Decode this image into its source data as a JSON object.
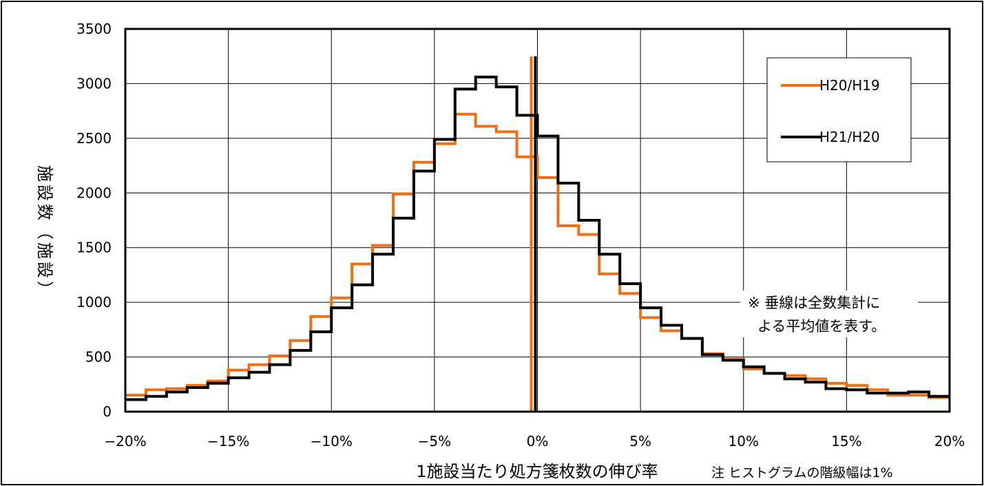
{
  "chart_data": {
    "type": "line",
    "xlabel": "1施設当たり処方箋枚数の伸び率",
    "ylabel": "施設数（施設）",
    "xlim": [
      -20,
      20
    ],
    "ylim": [
      0,
      3500
    ],
    "x_ticks": [
      -20,
      -15,
      -10,
      -5,
      0,
      5,
      10,
      15,
      20
    ],
    "x_tick_labels": [
      "−20%",
      "−15%",
      "−10%",
      "−5%",
      "0%",
      "5%",
      "10%",
      "15%",
      "20%"
    ],
    "y_ticks": [
      0,
      500,
      1000,
      1500,
      2000,
      2500,
      3000,
      3500
    ],
    "y_tick_labels": [
      "0",
      "500",
      "1000",
      "1500",
      "2000",
      "2500",
      "3000",
      "3500"
    ],
    "grid": true,
    "legend_position": "top-right",
    "note": "注 ヒストグラムの階級幅は1%",
    "annotation_lines": [
      "※ 垂線は全数集計に",
      "よる平均値を表す。"
    ],
    "bin_edges": [
      -20,
      -19,
      -18,
      -17,
      -16,
      -15,
      -14,
      -13,
      -12,
      -11,
      -10,
      -9,
      -8,
      -7,
      -6,
      -5,
      -4,
      -3,
      -2,
      -1,
      0,
      1,
      2,
      3,
      4,
      5,
      6,
      7,
      8,
      9,
      10,
      11,
      12,
      13,
      14,
      15,
      16,
      17,
      18,
      19,
      20
    ],
    "series": [
      {
        "name": "H20/H19",
        "color": "#ED7014",
        "mean_line_x": -0.3,
        "values": [
          150,
          200,
          210,
          240,
          280,
          380,
          430,
          510,
          650,
          870,
          1040,
          1350,
          1520,
          1990,
          2280,
          2450,
          2720,
          2610,
          2560,
          2330,
          2140,
          1700,
          1620,
          1260,
          1080,
          860,
          740,
          670,
          530,
          480,
          390,
          350,
          330,
          300,
          260,
          240,
          200,
          150,
          150,
          130
        ]
      },
      {
        "name": "H21/H20",
        "color": "#000000",
        "mean_line_x": -0.1,
        "values": [
          110,
          140,
          180,
          220,
          260,
          310,
          360,
          430,
          560,
          730,
          950,
          1160,
          1440,
          1770,
          2200,
          2490,
          2950,
          3060,
          2970,
          2710,
          2520,
          2090,
          1750,
          1440,
          1170,
          950,
          790,
          670,
          520,
          470,
          410,
          350,
          300,
          270,
          210,
          200,
          170,
          170,
          180,
          140
        ]
      }
    ]
  }
}
